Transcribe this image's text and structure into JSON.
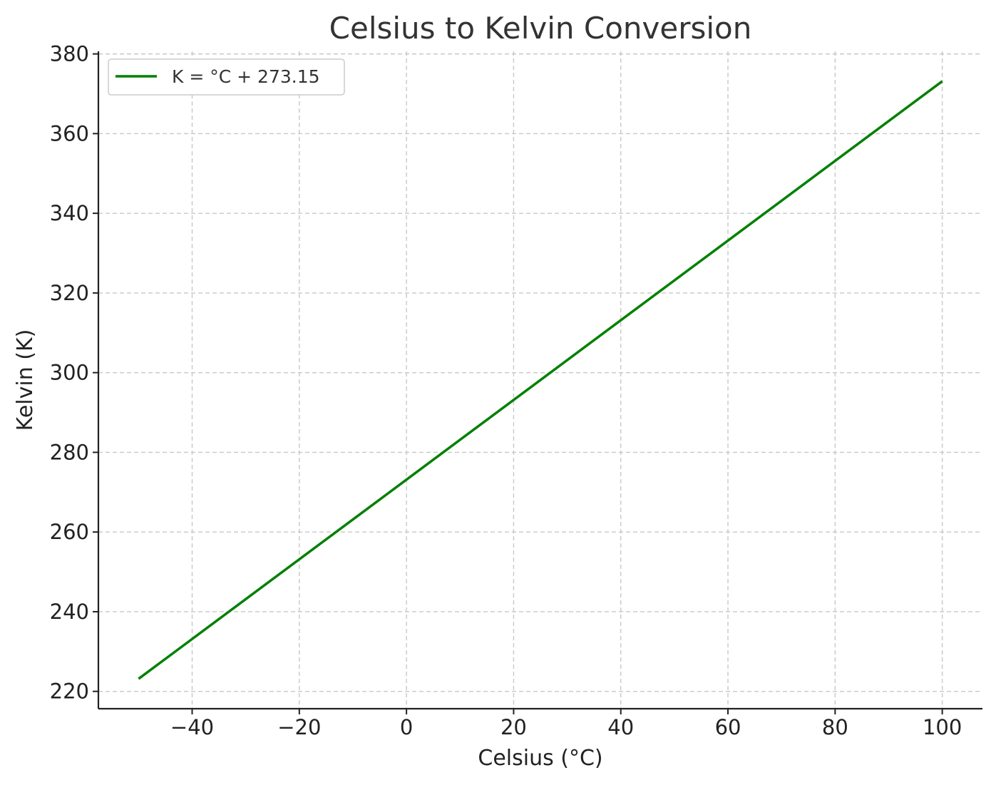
{
  "chart_data": {
    "type": "line",
    "title": "Celsius to Kelvin Conversion",
    "xlabel": "Celsius (°C)",
    "ylabel": "Kelvin (K)",
    "xlim": [
      -57.5,
      107.5
    ],
    "ylim": [
      215.65,
      380.65
    ],
    "xticks": [
      -40,
      -20,
      0,
      20,
      40,
      60,
      80,
      100
    ],
    "xtick_labels": [
      "−40",
      "−20",
      "0",
      "20",
      "40",
      "60",
      "80",
      "100"
    ],
    "yticks": [
      220,
      240,
      260,
      280,
      300,
      320,
      340,
      360,
      380
    ],
    "ytick_labels": [
      "220",
      "240",
      "260",
      "280",
      "300",
      "320",
      "340",
      "360",
      "380"
    ],
    "grid": true,
    "legend_position": "upper-left",
    "series": [
      {
        "name": "K = °C + 273.15",
        "color": "#008000",
        "x": [
          -50,
          100
        ],
        "y": [
          223.15,
          373.15
        ]
      }
    ]
  }
}
